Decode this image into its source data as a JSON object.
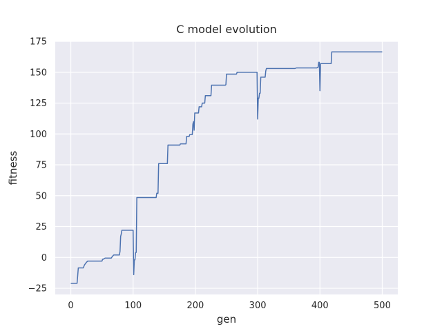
{
  "chart_data": {
    "type": "line",
    "title": "C model evolution",
    "xlabel": "gen",
    "ylabel": "fitness",
    "xlim": [
      -25,
      525
    ],
    "ylim": [
      -30,
      175
    ],
    "xticks": [
      0,
      100,
      200,
      300,
      400,
      500
    ],
    "yticks": [
      -25,
      0,
      25,
      50,
      75,
      100,
      125,
      150,
      175
    ],
    "grid": true,
    "background_color": "#eaeaf2",
    "grid_color": "#ffffff",
    "line_color": "#4c72b0",
    "series": [
      {
        "name": "",
        "x": [
          0,
          10,
          11,
          12,
          20,
          22,
          25,
          27,
          29,
          40,
          50,
          51,
          52,
          55,
          57,
          65,
          67,
          69,
          70,
          78,
          79,
          80,
          81,
          82,
          83,
          100,
          101,
          102,
          103,
          104,
          105,
          106,
          107,
          137,
          138,
          140,
          141,
          155,
          156,
          175,
          176,
          185,
          186,
          190,
          191,
          195,
          196,
          197,
          198,
          199,
          200,
          201,
          202,
          205,
          206,
          210,
          211,
          215,
          216,
          224,
          225,
          226,
          227,
          248,
          249,
          250,
          251,
          266,
          267,
          299,
          300,
          301,
          302,
          303,
          304,
          305,
          306,
          312,
          313,
          314,
          315,
          360,
          362,
          395,
          396,
          397,
          398,
          399,
          400,
          401,
          402,
          418,
          419,
          500
        ],
        "y": [
          -21,
          -21,
          -15,
          -8.5,
          -8.5,
          -6,
          -4,
          -3,
          -3,
          -3,
          -3,
          -1.5,
          -1.5,
          -0.5,
          -0.5,
          -0.5,
          1,
          2,
          2,
          2,
          5,
          17,
          19,
          22,
          22,
          22,
          -14,
          -2,
          -2,
          4,
          4,
          48.5,
          48.5,
          48.5,
          52,
          52,
          76,
          76,
          91,
          91,
          92,
          92,
          98,
          98,
          99.5,
          99.5,
          108,
          110,
          103,
          117,
          117,
          117,
          117,
          117,
          122,
          122,
          125,
          125,
          131,
          131,
          131,
          139.5,
          139.5,
          139.5,
          140,
          148.5,
          148.5,
          148.5,
          150,
          150,
          112,
          129,
          129,
          133,
          133,
          146,
          146,
          146,
          151,
          153,
          153,
          153,
          153.5,
          153.5,
          154,
          154,
          158,
          158,
          135,
          157,
          157,
          157,
          166.5,
          166.5
        ]
      }
    ]
  }
}
